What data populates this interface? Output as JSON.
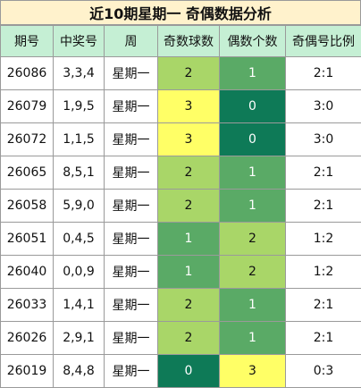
{
  "title": "近10期星期一 奇偶数据分析",
  "headers": [
    "期号",
    "中奖号",
    "周",
    "奇数球数",
    "偶数个数",
    "奇偶号比例"
  ],
  "rows": [
    {
      "issue": "26086",
      "numbers": "3,3,4",
      "weekday": "星期一",
      "odd": "2",
      "even": "1",
      "ratio": "2:1",
      "odd_color": "lg",
      "even_color": "md"
    },
    {
      "issue": "26079",
      "numbers": "1,9,5",
      "weekday": "星期一",
      "odd": "3",
      "even": "0",
      "ratio": "3:0",
      "odd_color": "yl",
      "even_color": "dk"
    },
    {
      "issue": "26072",
      "numbers": "1,1,5",
      "weekday": "星期一",
      "odd": "3",
      "even": "0",
      "ratio": "3:0",
      "odd_color": "yl",
      "even_color": "dk"
    },
    {
      "issue": "26065",
      "numbers": "8,5,1",
      "weekday": "星期一",
      "odd": "2",
      "even": "1",
      "ratio": "2:1",
      "odd_color": "lg",
      "even_color": "md"
    },
    {
      "issue": "26058",
      "numbers": "5,9,0",
      "weekday": "星期一",
      "odd": "2",
      "even": "1",
      "ratio": "2:1",
      "odd_color": "lg",
      "even_color": "md"
    },
    {
      "issue": "26051",
      "numbers": "0,4,5",
      "weekday": "星期一",
      "odd": "1",
      "even": "2",
      "ratio": "1:2",
      "odd_color": "md",
      "even_color": "lg"
    },
    {
      "issue": "26040",
      "numbers": "0,0,9",
      "weekday": "星期一",
      "odd": "1",
      "even": "2",
      "ratio": "1:2",
      "odd_color": "md",
      "even_color": "lg"
    },
    {
      "issue": "26033",
      "numbers": "1,4,1",
      "weekday": "星期一",
      "odd": "2",
      "even": "1",
      "ratio": "2:1",
      "odd_color": "lg",
      "even_color": "md"
    },
    {
      "issue": "26026",
      "numbers": "2,9,1",
      "weekday": "星期一",
      "odd": "2",
      "even": "1",
      "ratio": "2:1",
      "odd_color": "lg",
      "even_color": "md"
    },
    {
      "issue": "26019",
      "numbers": "8,4,8",
      "weekday": "星期一",
      "odd": "0",
      "even": "3",
      "ratio": "0:3",
      "odd_color": "dk",
      "even_color": "yl"
    }
  ],
  "colors": {
    "title_bg": "#fff2cc",
    "header_bg": "#c5efd4",
    "light_green": "#a9d668",
    "mid_green": "#5aaa66",
    "dark_green": "#0e7a57",
    "yellow": "#ffff66"
  }
}
